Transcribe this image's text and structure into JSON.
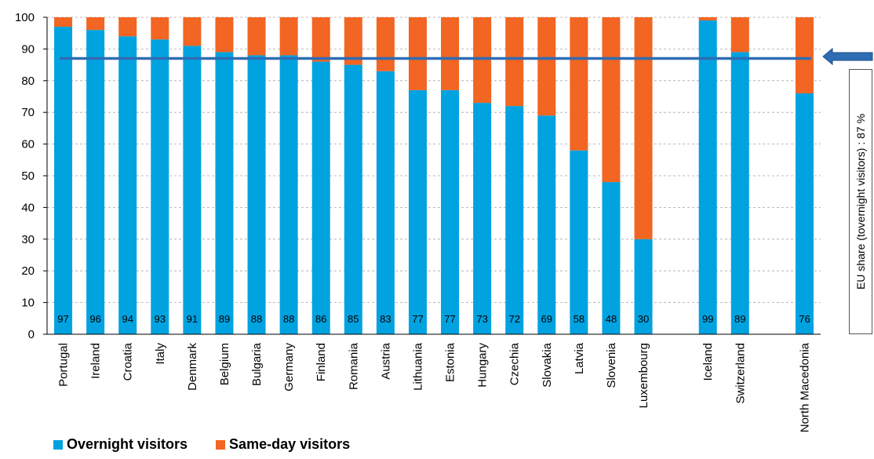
{
  "chart_data": {
    "type": "bar",
    "stacked": true,
    "categories": [
      "Portugal",
      "Ireland",
      "Croatia",
      "Italy",
      "Denmark",
      "Belgium",
      "Bulgaria",
      "Germany",
      "Finland",
      "Romania",
      "Austria",
      "Lithuania",
      "Estonia",
      "Hungary",
      "Czechia",
      "Slovakia",
      "Latvia",
      "Slovenia",
      "Luxembourg",
      "Iceland",
      "Switzerland",
      "North Macedonia"
    ],
    "groups": [
      19,
      2,
      1
    ],
    "series": [
      {
        "name": "Overnight visitors",
        "color": "#00A2E0",
        "values": [
          97,
          96,
          94,
          93,
          91,
          89,
          88,
          88,
          86,
          85,
          83,
          77,
          77,
          73,
          72,
          69,
          58,
          48,
          30,
          99,
          89,
          76
        ]
      },
      {
        "name": "Same-day visitors",
        "color": "#F26522",
        "values": [
          3,
          4,
          6,
          7,
          9,
          11,
          12,
          12,
          14,
          15,
          17,
          23,
          23,
          27,
          28,
          31,
          42,
          52,
          70,
          1,
          11,
          24
        ]
      }
    ],
    "data_labels": [
      "97",
      "96",
      "94",
      "93",
      "91",
      "89",
      "88",
      "88",
      "86",
      "85",
      "83",
      "77",
      "77",
      "73",
      "72",
      "69",
      "58",
      "48",
      "30",
      "99",
      "89",
      "76"
    ],
    "ylim": [
      0,
      100
    ],
    "yticks": [
      0,
      10,
      20,
      30,
      40,
      50,
      60,
      70,
      80,
      90,
      100
    ],
    "grid": true,
    "legend_position": "bottom-left",
    "reference_line": {
      "value": 87,
      "color": "#2E6DB4",
      "label": "EU share (tovernight visitors) :  87 %"
    }
  }
}
